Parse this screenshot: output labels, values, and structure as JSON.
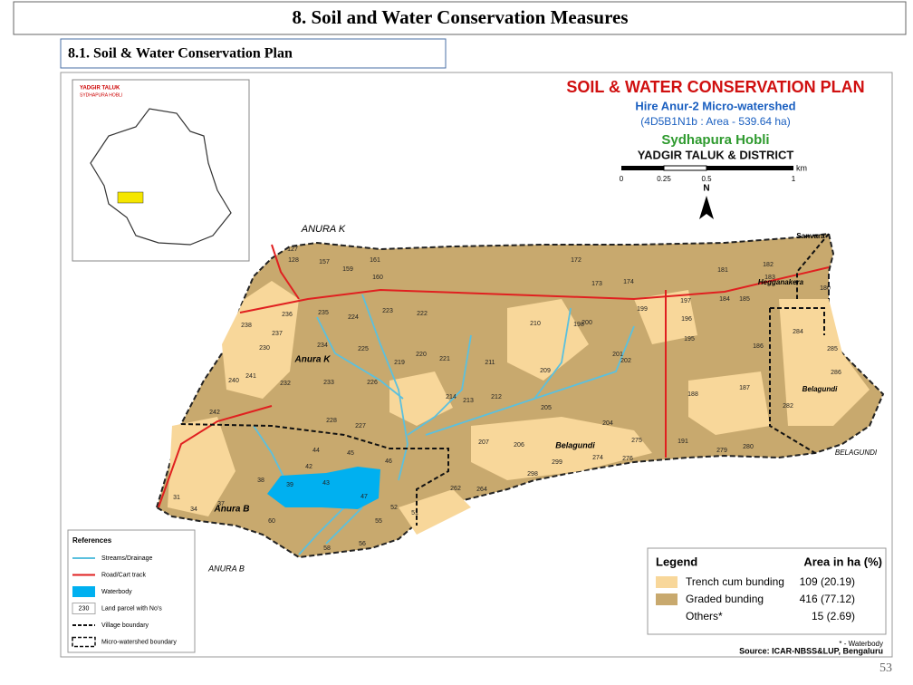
{
  "header": {
    "title": "8. Soil and Water Conservation Measures",
    "subtitle": "8.1. Soil & Water Conservation Plan"
  },
  "map": {
    "title": "SOIL & WATER CONSERVATION PLAN",
    "watershed": "Hire Anur-2 Micro-watershed",
    "code": "(4D5B1N1b : Area - 539.64 ha)",
    "hobli": "Sydhapura Hobli",
    "taluk": "YADGIR TALUK & DISTRICT",
    "scale_unit": "km",
    "scale_ticks": [
      "0",
      "0.25",
      "0.5",
      "1"
    ],
    "north": "N",
    "inset": {
      "title": "YADGIR TALUK",
      "subtitle": "SYDHAPURA HOBLI"
    },
    "places": [
      "ANURA K",
      "Anura K",
      "Anura B",
      "ANURA B",
      "Belagundi",
      "BELAGUNDI",
      "Hegganakera",
      "Sanvara",
      "Belagundi"
    ],
    "parcels": [
      "127",
      "128",
      "157",
      "161",
      "172",
      "181",
      "182",
      "159",
      "160",
      "173",
      "174",
      "183",
      "180",
      "223",
      "222",
      "199",
      "198",
      "210",
      "200",
      "197",
      "196",
      "184",
      "185",
      "236",
      "235",
      "224",
      "238",
      "237",
      "230",
      "234",
      "225",
      "219",
      "220",
      "221",
      "211",
      "209",
      "201",
      "202",
      "195",
      "186",
      "284",
      "285",
      "241",
      "232",
      "233",
      "226",
      "214",
      "213",
      "212",
      "205",
      "204",
      "188",
      "187",
      "286",
      "282",
      "240",
      "242",
      "228",
      "227",
      "207",
      "206",
      "275",
      "274",
      "191",
      "279",
      "280",
      "43",
      "42",
      "44",
      "45",
      "46",
      "47",
      "39",
      "38",
      "37",
      "34",
      "31",
      "60",
      "58",
      "56",
      "55",
      "52",
      "51",
      "262",
      "264",
      "298",
      "299",
      "276"
    ]
  },
  "legend": {
    "title": "Legend",
    "area_header": "Area in ha (%)",
    "items": [
      {
        "label": "Trench cum bunding",
        "area": "109 (20.19)"
      },
      {
        "label": "Graded bunding",
        "area": "416 (77.12)"
      },
      {
        "label": "Others*",
        "area": "15 (2.69)"
      }
    ],
    "note": "* - Waterbody",
    "source": "Source: ICAR-NBSS&LUP, Bengaluru"
  },
  "references": {
    "title": "References",
    "items": [
      "Streams/Drainage",
      "Road/Cart track",
      "Waterbody",
      "Land parcel with No's",
      "Village boundary",
      "Micro-watershed boundary"
    ],
    "parcel_sample": "230"
  },
  "page_number": "53"
}
